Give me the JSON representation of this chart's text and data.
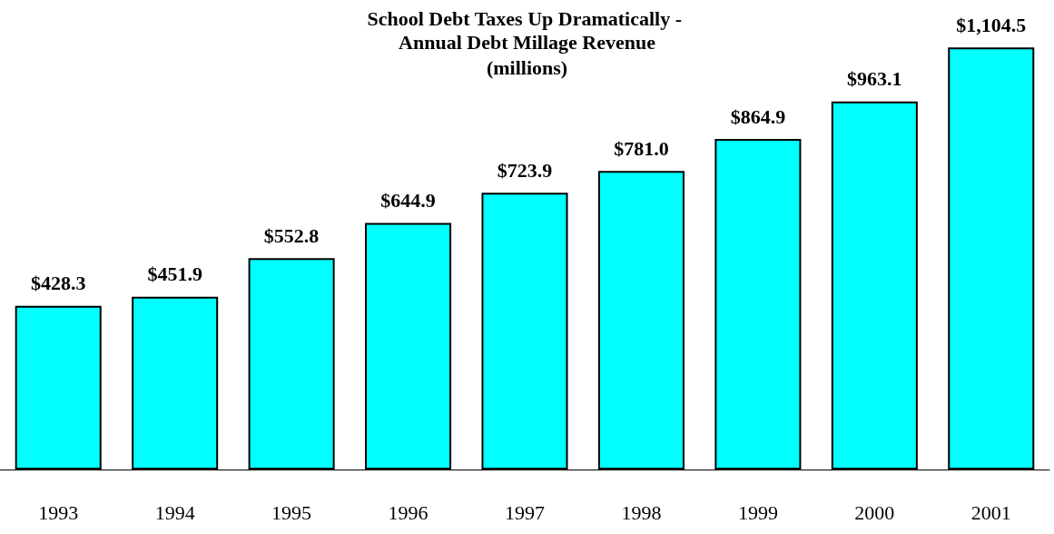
{
  "chart_data": {
    "type": "bar",
    "title": "School Debt Taxes Up Dramatically - Annual Debt Millage Revenue",
    "subtitle": "(millions)",
    "categories": [
      "1993",
      "1994",
      "1995",
      "1996",
      "1997",
      "1998",
      "1999",
      "2000",
      "2001"
    ],
    "values": [
      428.3,
      451.9,
      552.8,
      644.9,
      723.9,
      781.0,
      864.9,
      963.1,
      1104.5
    ],
    "value_labels": [
      "$428.3",
      "$451.9",
      "$552.8",
      "$644.9",
      "$723.9",
      "$781.0",
      "$864.9",
      "$963.1",
      "$1,104.5"
    ],
    "color": "#00ffff"
  }
}
